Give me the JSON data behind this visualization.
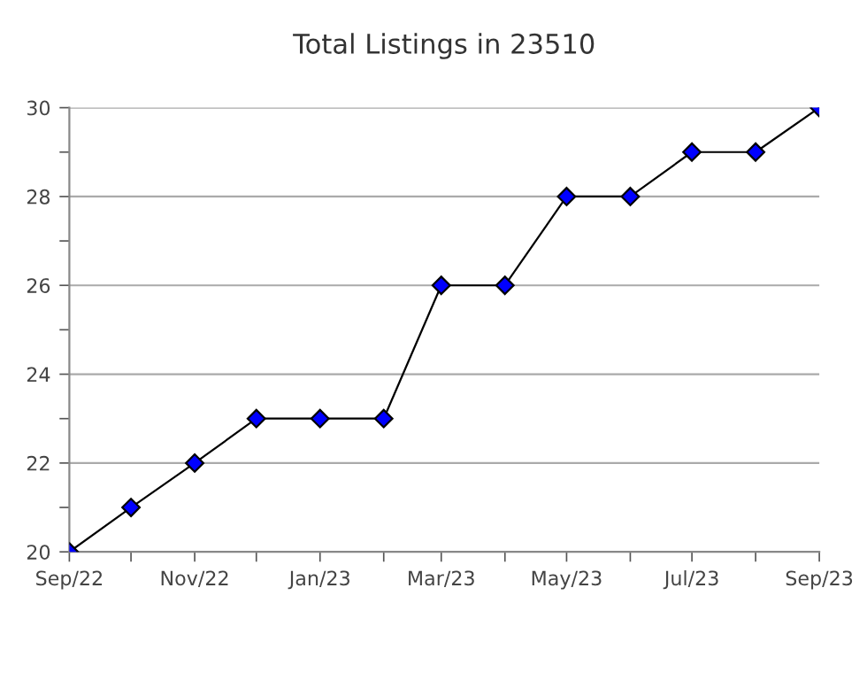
{
  "chart_data": {
    "type": "line",
    "title": "Total Listings in 23510",
    "x": [
      "2022-09",
      "2022-10",
      "2022-11",
      "2022-12",
      "2023-01",
      "2023-02",
      "2023-03",
      "2023-04",
      "2023-05",
      "2023-06",
      "2023-07",
      "2023-08",
      "2023-09"
    ],
    "series": [
      {
        "color": "#0000ff",
        "values": [
          20,
          21,
          22,
          23,
          23,
          23,
          26,
          26,
          28,
          28,
          29,
          29,
          30
        ]
      }
    ],
    "xlim": [
      "2022-09",
      "2023-09"
    ],
    "xticks": [
      {
        "value": "2022-09",
        "label": "Sep/22"
      },
      {
        "value": "2022-10",
        "label": null
      },
      {
        "value": "2022-11",
        "label": "Nov/22"
      },
      {
        "value": "2022-12",
        "label": null
      },
      {
        "value": "2023-01",
        "label": "Jan/23"
      },
      {
        "value": "2023-02",
        "label": null
      },
      {
        "value": "2023-03",
        "label": "Mar/23"
      },
      {
        "value": "2023-04",
        "label": null
      },
      {
        "value": "2023-05",
        "label": "May/23"
      },
      {
        "value": "2023-06",
        "label": null
      },
      {
        "value": "2023-07",
        "label": "Jul/23"
      },
      {
        "value": "2023-08",
        "label": null
      },
      {
        "value": "2023-09",
        "label": "Sep/23"
      }
    ],
    "ylim": [
      20,
      30
    ],
    "yticks": [
      20,
      {
        "value": 21,
        "label": null
      },
      22,
      {
        "value": 23,
        "label": null
      },
      24,
      {
        "value": 25,
        "label": null
      },
      26,
      {
        "value": 27,
        "label": null
      },
      28,
      {
        "value": 29,
        "label": null
      },
      30
    ],
    "grid": "y",
    "marker": "diamond",
    "line_style": "solid",
    "legend": false
  }
}
